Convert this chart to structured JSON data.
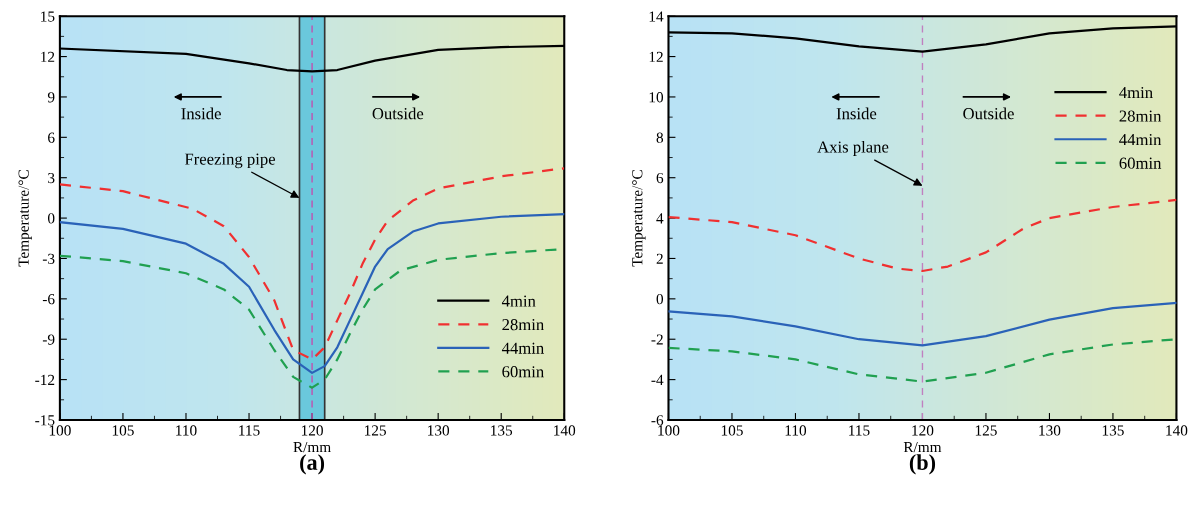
{
  "chart_data": [
    {
      "type": "line",
      "xlabel": "R/mm",
      "ylabel": "Temperature/°C",
      "xlim": [
        100,
        140
      ],
      "xticks": [
        100,
        105,
        110,
        115,
        120,
        125,
        130,
        135,
        140
      ],
      "ylim": [
        -15,
        15
      ],
      "yticks": [
        -15,
        -12,
        -9,
        -6,
        -3,
        0,
        3,
        6,
        9,
        12,
        15
      ],
      "legend": "bottom right",
      "grid": false,
      "annotations": [
        "(a)",
        "Inside",
        "Outside",
        {
          "text": "Freezing pipe",
          "x": 119,
          "y": 1.5
        }
      ],
      "bands": [
        {
          "axis": "x",
          "from": 119,
          "to": 121,
          "color": "#6ac8dc"
        }
      ],
      "ref_lines": [
        {
          "axis": "x",
          "value": 120,
          "color": "#c050b0",
          "line_style": "dashed"
        }
      ],
      "series": [
        {
          "name": "4min",
          "color": "#000000",
          "line_style": "solid",
          "x": [
            100,
            110,
            115,
            118,
            120,
            122,
            125,
            130,
            135,
            140
          ],
          "values": [
            12.6,
            12.2,
            11.5,
            11.0,
            10.9,
            11.0,
            11.7,
            12.5,
            12.7,
            12.8
          ]
        },
        {
          "name": "28min",
          "color": "#f03030",
          "line_style": "dashed",
          "x": [
            100,
            105,
            110.5,
            113,
            115,
            117,
            118.5,
            120,
            121,
            122,
            123,
            124,
            125,
            126,
            128,
            130,
            135,
            140
          ],
          "values": [
            2.5,
            2.0,
            0.7,
            -0.6,
            -2.9,
            -6.1,
            -9.8,
            -10.5,
            -9.6,
            -7.6,
            -5.6,
            -3.4,
            -1.6,
            -0.2,
            1.3,
            2.2,
            3.1,
            3.7
          ]
        },
        {
          "name": "44min",
          "color": "#2a62b8",
          "line_style": "solid",
          "x": [
            100,
            105,
            110,
            113,
            115,
            117,
            118.5,
            120,
            121,
            122,
            123,
            124,
            125,
            126,
            128,
            130,
            135,
            140
          ],
          "values": [
            -0.3,
            -0.8,
            -1.9,
            -3.4,
            -5.1,
            -8.3,
            -10.5,
            -11.5,
            -11.0,
            -9.6,
            -7.6,
            -5.6,
            -3.6,
            -2.3,
            -1.0,
            -0.4,
            0.1,
            0.3
          ]
        },
        {
          "name": "60min",
          "color": "#20a050",
          "line_style": "dashed",
          "x": [
            100,
            105,
            110,
            113,
            115,
            117,
            118.5,
            120,
            121,
            122,
            123,
            124,
            125,
            127,
            130,
            135,
            140
          ],
          "values": [
            -2.8,
            -3.2,
            -4.1,
            -5.3,
            -6.8,
            -9.8,
            -11.8,
            -12.6,
            -12.0,
            -10.5,
            -8.6,
            -6.8,
            -5.3,
            -3.9,
            -3.1,
            -2.6,
            -2.3
          ]
        }
      ]
    },
    {
      "type": "line",
      "xlabel": "R/mm",
      "ylabel": "Temperature/°C",
      "xlim": [
        100,
        140
      ],
      "xticks": [
        100,
        105,
        110,
        115,
        120,
        125,
        130,
        135,
        140
      ],
      "ylim": [
        -6,
        14
      ],
      "yticks": [
        -6,
        -4,
        -2,
        0,
        2,
        4,
        6,
        8,
        10,
        12,
        14
      ],
      "legend": "right",
      "grid": false,
      "annotations": [
        "(b)",
        "Inside",
        "Outside",
        {
          "text": "Axis plane",
          "x": 120,
          "y": 5.6
        }
      ],
      "ref_lines": [
        {
          "axis": "x",
          "value": 120,
          "color": "#c080c0",
          "line_style": "dashed"
        }
      ],
      "series": [
        {
          "name": "4min",
          "color": "#000000",
          "line_style": "solid",
          "x": [
            100,
            105,
            110,
            115,
            120,
            125,
            130,
            135,
            140
          ],
          "values": [
            13.2,
            13.15,
            12.9,
            12.5,
            12.25,
            12.6,
            13.15,
            13.4,
            13.5
          ]
        },
        {
          "name": "28min",
          "color": "#f03030",
          "line_style": "dashed",
          "x": [
            100,
            105,
            110,
            115,
            118,
            120,
            122,
            125,
            128,
            130,
            135,
            140
          ],
          "values": [
            4.05,
            3.8,
            3.15,
            2.0,
            1.5,
            1.38,
            1.6,
            2.3,
            3.5,
            4.0,
            4.55,
            4.9
          ]
        },
        {
          "name": "44min",
          "color": "#2a62b8",
          "line_style": "solid",
          "x": [
            100,
            105,
            110,
            115,
            120,
            125,
            130,
            135,
            140
          ],
          "values": [
            -0.62,
            -0.87,
            -1.36,
            -2.0,
            -2.3,
            -1.85,
            -1.03,
            -0.46,
            -0.2
          ]
        },
        {
          "name": "60min",
          "color": "#20a050",
          "line_style": "dashed",
          "x": [
            100,
            105,
            110,
            115,
            120,
            125,
            130,
            135,
            140
          ],
          "values": [
            -2.43,
            -2.6,
            -3.0,
            -3.74,
            -4.1,
            -3.66,
            -2.75,
            -2.26,
            -2.0
          ]
        }
      ]
    }
  ]
}
